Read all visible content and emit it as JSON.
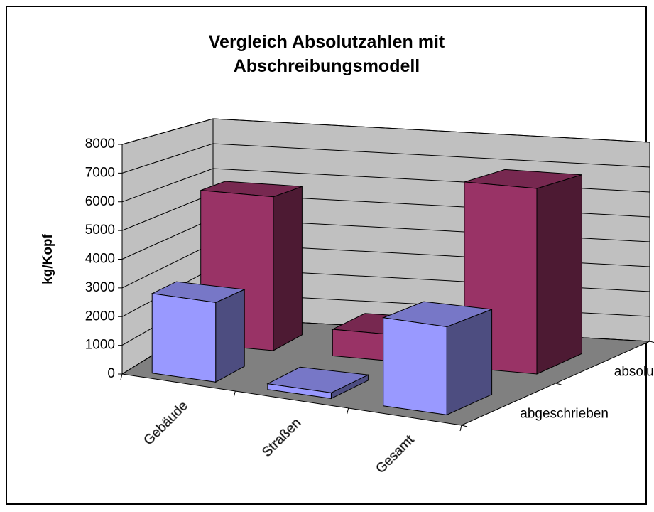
{
  "chart_data": {
    "type": "bar3d",
    "title": "Vergleich Absolutzahlen mit Abschreibungsmodell",
    "ylabel": "kg/Kopf",
    "categories": [
      "Gebäude",
      "Straßen",
      "Gesamt"
    ],
    "series": [
      {
        "name": "abgeschrieben",
        "color": "#9999ff",
        "values": [
          2800,
          200,
          3100
        ]
      },
      {
        "name": "absolut",
        "color": "#993366",
        "values": [
          5800,
          1000,
          7000
        ]
      }
    ],
    "ylim": [
      0,
      8000
    ],
    "yticks": [
      0,
      1000,
      2000,
      3000,
      4000,
      5000,
      6000,
      7000,
      8000
    ],
    "grid": true
  }
}
